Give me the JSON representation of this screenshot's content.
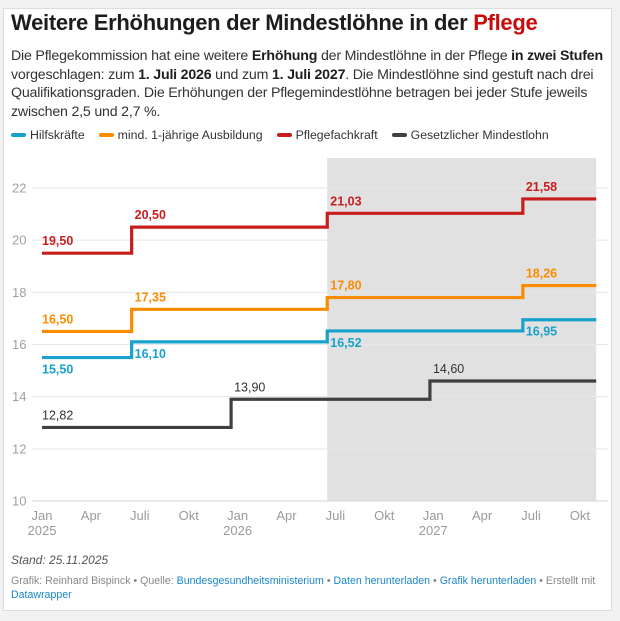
{
  "header": {
    "title_main": "Weitere Erhöhungen der Mindestlöhne in der ",
    "title_accent": "Pflege",
    "intro": {
      "t1": "Die Pflegekommission hat eine weitere ",
      "b1": "Erhöhung",
      "t2": " der Mindestlöhne in der Pflege ",
      "b2": "in zwei Stufen",
      "t3": " vorgeschlagen: zum ",
      "b3": "1. Juli 2026",
      "t4": " und zum ",
      "b4": "1. Juli 2027",
      "t5": ". Die Mindestlöhne sind gestuft nach drei Qualifikationsgraden. Die Erhöhungen der Pflegemindestlöhne betragen bei jeder Stufe jeweils zwischen 2,5 und 2,7 %."
    }
  },
  "colors": {
    "accent": "#c80b0b",
    "hilfskraefte": "#18a1cd",
    "ausbildung": "#fa8c00",
    "fachkraft": "#c71e1d",
    "mindestlohn": "#404040",
    "shade": "#e1e1e1",
    "grid": "#e6e6e6"
  },
  "chart_data": {
    "type": "line",
    "subtype": "step",
    "title": "Weitere Erhöhungen der Mindestlöhne in der Pflege",
    "xlabel": "",
    "ylabel": "",
    "ylim": [
      10,
      22
    ],
    "yticks": [
      10,
      12,
      14,
      16,
      18,
      20,
      22
    ],
    "grid": true,
    "legend_position": "top-left",
    "x_range_months": [
      0,
      34
    ],
    "x_unit": "months since Jan 2025",
    "xticks": [
      {
        "m": 0,
        "label": "Jan",
        "year": "2025"
      },
      {
        "m": 3,
        "label": "Apr",
        "year": ""
      },
      {
        "m": 6,
        "label": "Juli",
        "year": ""
      },
      {
        "m": 9,
        "label": "Okt",
        "year": ""
      },
      {
        "m": 12,
        "label": "Jan",
        "year": "2026"
      },
      {
        "m": 15,
        "label": "Apr",
        "year": ""
      },
      {
        "m": 18,
        "label": "Juli",
        "year": ""
      },
      {
        "m": 21,
        "label": "Okt",
        "year": ""
      },
      {
        "m": 24,
        "label": "Jan",
        "year": "2027"
      },
      {
        "m": 27,
        "label": "Apr",
        "year": ""
      },
      {
        "m": 30,
        "label": "Juli",
        "year": ""
      },
      {
        "m": 33,
        "label": "Okt",
        "year": ""
      }
    ],
    "shaded_range_months": [
      17.5,
      34
    ],
    "series": [
      {
        "name": "Pflegefachkraft",
        "color_key": "fachkraft",
        "steps": [
          {
            "from": 0,
            "value": 19.5,
            "label": "19,50"
          },
          {
            "from": 5.5,
            "value": 20.5,
            "label": "20,50"
          },
          {
            "from": 17.5,
            "value": 21.03,
            "label": "21,03"
          },
          {
            "from": 29.5,
            "value": 21.58,
            "label": "21,58"
          }
        ],
        "end": 34,
        "label_pos": "above"
      },
      {
        "name": "mind. 1-jährige Ausbildung",
        "color_key": "ausbildung",
        "steps": [
          {
            "from": 0,
            "value": 16.5,
            "label": "16,50"
          },
          {
            "from": 5.5,
            "value": 17.35,
            "label": "17,35"
          },
          {
            "from": 17.5,
            "value": 17.8,
            "label": "17,80"
          },
          {
            "from": 29.5,
            "value": 18.26,
            "label": "18,26"
          }
        ],
        "end": 34,
        "label_pos": "above"
      },
      {
        "name": "Hilfskräfte",
        "color_key": "hilfskraefte",
        "steps": [
          {
            "from": 0,
            "value": 15.5,
            "label": "15,50"
          },
          {
            "from": 5.5,
            "value": 16.1,
            "label": "16,10"
          },
          {
            "from": 17.5,
            "value": 16.52,
            "label": "16,52"
          },
          {
            "from": 29.5,
            "value": 16.95,
            "label": "16,95"
          }
        ],
        "end": 34,
        "label_pos": "below"
      },
      {
        "name": "Gesetzlicher Mindestlohn",
        "color_key": "mindestlohn",
        "steps": [
          {
            "from": 0,
            "value": 12.82,
            "label": "12,82"
          },
          {
            "from": 11.6,
            "value": 13.9,
            "label": "13,90"
          },
          {
            "from": 23.8,
            "value": 14.6,
            "label": "14,60"
          }
        ],
        "end": 34,
        "label_pos": "above"
      }
    ]
  },
  "legend": [
    {
      "label": "Hilfskräfte",
      "color_key": "hilfskraefte"
    },
    {
      "label": "mind. 1-jährige Ausbildung",
      "color_key": "ausbildung"
    },
    {
      "label": "Pflegefachkraft",
      "color_key": "fachkraft"
    },
    {
      "label": "Gesetzlicher Mindestlohn",
      "color_key": "mindestlohn"
    }
  ],
  "footer": {
    "stand": "Stand: 25.11.2025",
    "grafik": "Grafik: Reinhard Bispinck",
    "sep": " • ",
    "quelle_label": "Quelle: ",
    "quelle_link": "Bundesgesundheitsministerium",
    "daten_link": "Daten herunterladen",
    "grafik_link": "Grafik herunterladen",
    "erstellt": "Erstellt mit ",
    "datawrapper_link": "Datawrapper"
  }
}
